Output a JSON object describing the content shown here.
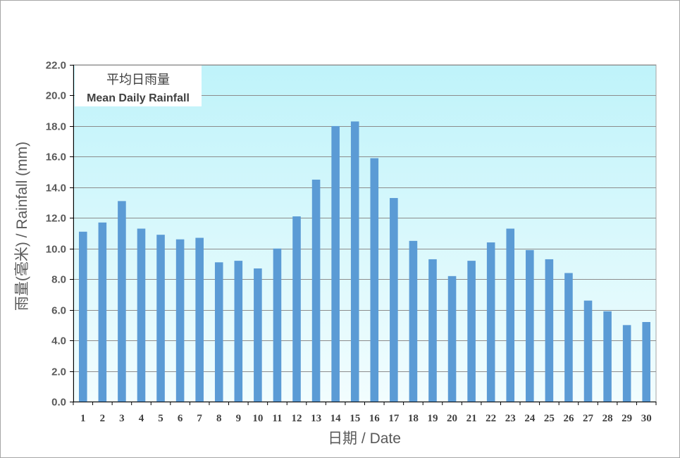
{
  "chart_data": {
    "type": "bar",
    "title_zh": "平均日雨量",
    "title_en": "Mean Daily Rainfall",
    "xlabel": "日期 / Date",
    "ylabel": "雨量(毫米) / Rainfall (mm)",
    "ylim": [
      0,
      22
    ],
    "ytick_step": 2,
    "grid": true,
    "bar_color": "#5b9bd5",
    "background_gradient": [
      "#bff3fa",
      "#f2fdfe"
    ],
    "categories": [
      "1",
      "2",
      "3",
      "4",
      "5",
      "6",
      "7",
      "8",
      "9",
      "10",
      "11",
      "12",
      "13",
      "14",
      "15",
      "16",
      "17",
      "18",
      "19",
      "20",
      "21",
      "22",
      "23",
      "24",
      "25",
      "26",
      "27",
      "28",
      "29",
      "30"
    ],
    "values": [
      11.1,
      11.7,
      13.1,
      11.3,
      10.9,
      10.6,
      10.7,
      9.1,
      9.2,
      8.7,
      10.0,
      12.1,
      14.5,
      18.0,
      18.3,
      15.9,
      13.3,
      10.5,
      9.3,
      8.2,
      9.2,
      10.4,
      11.3,
      9.9,
      9.3,
      8.4,
      6.6,
      5.9,
      5.0,
      5.2
    ]
  }
}
